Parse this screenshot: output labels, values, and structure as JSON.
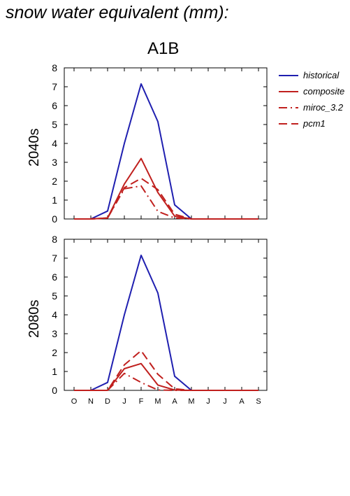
{
  "title": "snow water equivalent (mm):",
  "scenario": "A1B",
  "legend": [
    {
      "name": "historical",
      "color": "#1f1fb0",
      "dash": "solid"
    },
    {
      "name": "composite",
      "color": "#c0201e",
      "dash": "solid"
    },
    {
      "name": "miroc_3.2",
      "color": "#c0201e",
      "dash": "dashdot"
    },
    {
      "name": "pcm1",
      "color": "#c0201e",
      "dash": "dashed"
    }
  ],
  "chart_data": [
    {
      "type": "line",
      "row_label": "2040s",
      "categories": [
        "O",
        "N",
        "D",
        "J",
        "F",
        "M",
        "A",
        "M",
        "J",
        "J",
        "A",
        "S"
      ],
      "ylim": [
        0,
        8
      ],
      "yticks": [
        "0",
        "1",
        "2",
        "3",
        "4",
        "5",
        "6",
        "7",
        "8"
      ],
      "series": [
        {
          "name": "historical",
          "color": "#1f1fb0",
          "dash": "solid",
          "values": [
            0,
            0,
            0.42,
            4.0,
            7.15,
            5.15,
            0.75,
            0,
            0,
            0,
            0,
            0
          ]
        },
        {
          "name": "composite",
          "color": "#c0201e",
          "dash": "solid",
          "values": [
            0,
            0,
            0.05,
            1.85,
            3.2,
            1.4,
            0.15,
            0,
            0,
            0,
            0,
            0
          ]
        },
        {
          "name": "miroc_3.2",
          "color": "#c0201e",
          "dash": "dashdot",
          "values": [
            0,
            0,
            0.05,
            1.6,
            1.75,
            0.4,
            0.05,
            0,
            0,
            0,
            0,
            0
          ]
        },
        {
          "name": "pcm1",
          "color": "#c0201e",
          "dash": "dashed",
          "values": [
            0,
            0,
            0.05,
            1.65,
            2.15,
            1.55,
            0.25,
            0,
            0,
            0,
            0,
            0
          ]
        }
      ]
    },
    {
      "type": "line",
      "row_label": "2080s",
      "categories": [
        "O",
        "N",
        "D",
        "J",
        "F",
        "M",
        "A",
        "M",
        "J",
        "J",
        "A",
        "S"
      ],
      "ylim": [
        0,
        8
      ],
      "yticks": [
        "0",
        "1",
        "2",
        "3",
        "4",
        "5",
        "6",
        "7",
        "8"
      ],
      "series": [
        {
          "name": "historical",
          "color": "#1f1fb0",
          "dash": "solid",
          "values": [
            0,
            0,
            0.42,
            4.0,
            7.15,
            5.15,
            0.75,
            0,
            0,
            0,
            0,
            0
          ]
        },
        {
          "name": "composite",
          "color": "#c0201e",
          "dash": "solid",
          "values": [
            0,
            0,
            0,
            1.15,
            1.42,
            0.28,
            0.02,
            0,
            0,
            0,
            0,
            0
          ]
        },
        {
          "name": "miroc_3.2",
          "color": "#c0201e",
          "dash": "dashdot",
          "values": [
            0,
            0,
            0,
            0.9,
            0.42,
            0.02,
            0,
            0,
            0,
            0,
            0,
            0
          ]
        },
        {
          "name": "pcm1",
          "color": "#c0201e",
          "dash": "dashed",
          "values": [
            0,
            0,
            0,
            1.35,
            2.1,
            0.85,
            0.08,
            0,
            0,
            0,
            0,
            0
          ]
        }
      ]
    }
  ]
}
